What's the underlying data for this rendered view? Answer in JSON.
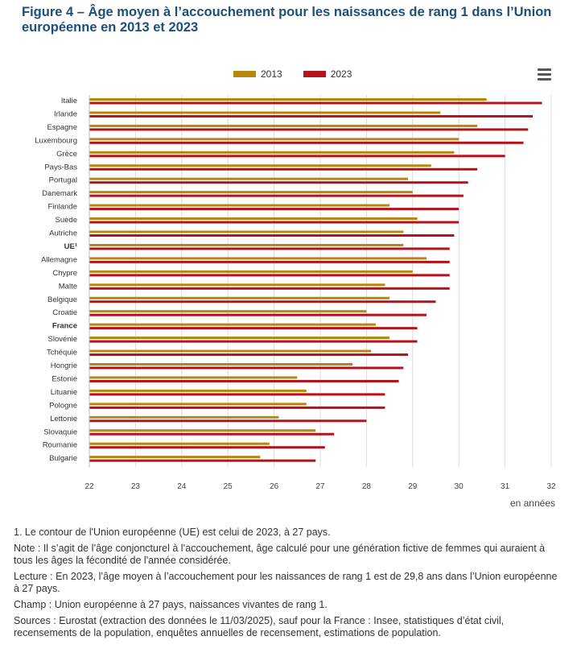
{
  "title": "Figure 4 – Âge moyen à l’accouchement pour les naissances de rang 1 dans l’Union européenne en 2013 et 2023",
  "legend": {
    "label_2013": "2013",
    "label_2023": "2023"
  },
  "colors": {
    "series_2013": "#b8860b",
    "series_2023": "#b5121b",
    "grid": "#dcdcdc"
  },
  "menu_icon": "hamburger-menu-icon",
  "chart_data": {
    "type": "bar",
    "orientation": "horizontal",
    "categories": [
      "Italie",
      "Irlande",
      "Espagne",
      "Luxembourg",
      "Grèce",
      "Pays-Bas",
      "Portugal",
      "Danemark",
      "Finlande",
      "Suède",
      "Autriche",
      "UE¹",
      "Allemagne",
      "Chypre",
      "Malte",
      "Belgique",
      "Croatie",
      "France",
      "Slovénie",
      "Tchéquie",
      "Hongrie",
      "Estonie",
      "Lituanie",
      "Pologne",
      "Lettonie",
      "Slovaquie",
      "Roumanie",
      "Bulgarie"
    ],
    "bold_categories": [
      "UE¹",
      "France"
    ],
    "series": [
      {
        "name": "2013",
        "values": [
          30.6,
          29.6,
          30.4,
          30.0,
          29.9,
          29.4,
          28.9,
          29.0,
          28.5,
          29.1,
          28.8,
          28.8,
          29.3,
          29.0,
          28.4,
          28.5,
          28.0,
          28.2,
          28.5,
          28.1,
          27.7,
          26.5,
          26.7,
          26.7,
          26.1,
          26.9,
          25.9,
          25.7
        ]
      },
      {
        "name": "2023",
        "values": [
          31.8,
          31.6,
          31.5,
          31.4,
          31.0,
          30.4,
          30.2,
          30.1,
          30.0,
          30.0,
          29.9,
          29.8,
          29.8,
          29.8,
          29.8,
          29.5,
          29.3,
          29.1,
          29.1,
          28.9,
          28.8,
          28.7,
          28.4,
          28.4,
          28.0,
          27.3,
          27.1,
          26.9
        ]
      }
    ],
    "xlim": [
      22,
      32
    ],
    "xticks": [
      22,
      23,
      24,
      25,
      26,
      27,
      28,
      29,
      30,
      31,
      32
    ],
    "xlabel": "en années",
    "grid": true,
    "legend_position": "top-center"
  },
  "notes": [
    "1. Le contour de l'Union européenne (UE) est celui de 2023, à 27 pays.",
    "Note : Il s’agit de l’âge conjoncturel à l’accouchement, âge calculé pour une génération fictive de femmes qui auraient à tous les âges la fécondité de l'année considérée.",
    "Lecture : En 2023, l’âge moyen à l’accouchement pour les naissances de rang 1 est de 29,8 ans dans l’Union européenne à 27 pays.",
    "Champ : Union européenne à 27 pays, naissances vivantes de rang 1.",
    "Sources : Eurostat (extraction des données le 11/03/2025), sauf pour la France : Insee, statistiques d’état civil, recensements de la population, enquêtes annuelles de recensement, estimations de population."
  ]
}
